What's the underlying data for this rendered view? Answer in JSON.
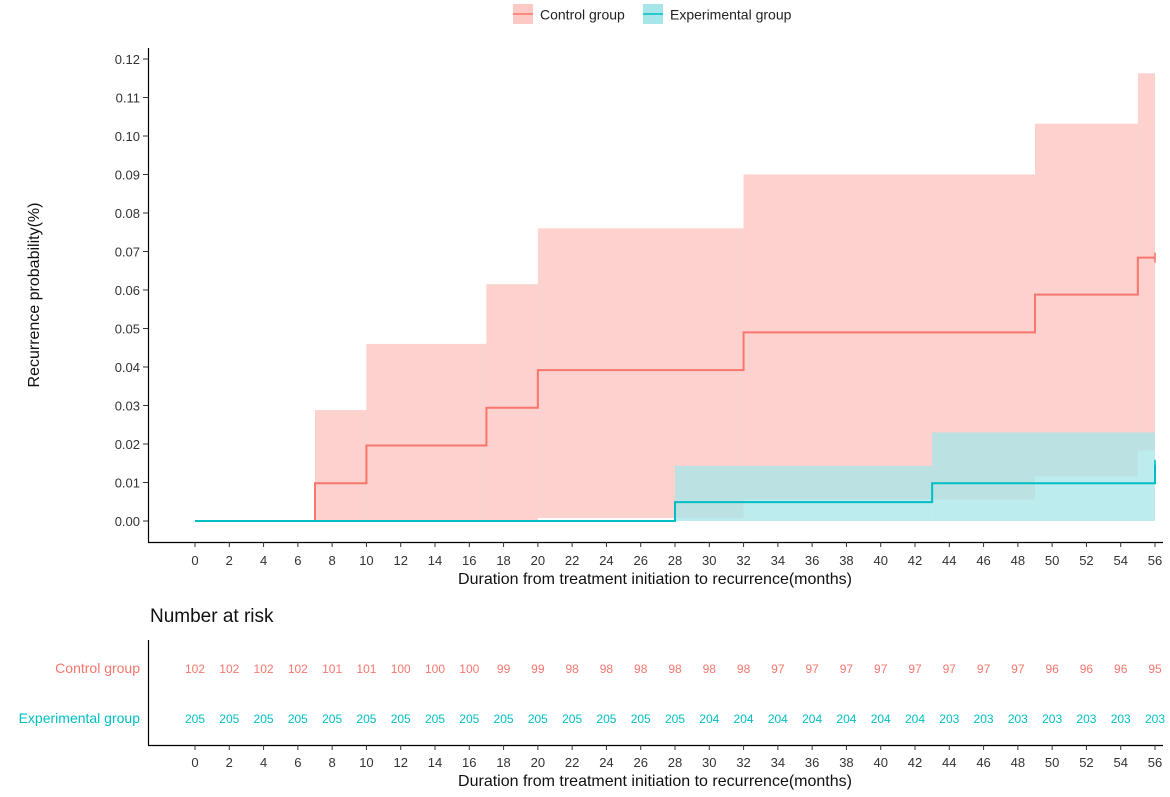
{
  "chart_data": [
    {
      "type": "step-survival",
      "legend": [
        "Control group",
        "Experimental group"
      ],
      "legend_position": "top",
      "ylabel": "Recurrence probability(%)",
      "xlabel": "Duration from treatment initiation to recurrence(months)",
      "ylim": [
        0,
        0.12
      ],
      "yticks": [
        0.0,
        0.01,
        0.02,
        0.03,
        0.04,
        0.05,
        0.06,
        0.07,
        0.08,
        0.09,
        0.1,
        0.11,
        0.12
      ],
      "ytick_labels": [
        "0.00",
        "0.01",
        "0.02",
        "0.03",
        "0.04",
        "0.05",
        "0.06",
        "0.07",
        "0.08",
        "0.09",
        "0.10",
        "0.11",
        "0.12"
      ],
      "xlim": [
        0,
        56
      ],
      "xticks": [
        0,
        2,
        4,
        6,
        8,
        10,
        12,
        14,
        16,
        18,
        20,
        22,
        24,
        26,
        28,
        30,
        32,
        34,
        36,
        38,
        40,
        42,
        44,
        46,
        48,
        50,
        52,
        54,
        56
      ],
      "xtick_labels": [
        "0",
        "2",
        "4",
        "6",
        "8",
        "10",
        "12",
        "14",
        "16",
        "18",
        "20",
        "22",
        "24",
        "26",
        "28",
        "30",
        "32",
        "34",
        "36",
        "38",
        "40",
        "42",
        "44",
        "46",
        "48",
        "50",
        "52",
        "54",
        "56"
      ],
      "series": [
        {
          "name": "Control group",
          "color": "#f8766d",
          "band_color": "#fcc9c5",
          "end": 56,
          "steps": [
            {
              "x": 0,
              "y": 0.0,
              "lo": 0.0,
              "hi": 0.0
            },
            {
              "x": 7,
              "y": 0.0098,
              "lo": 0.0,
              "hi": 0.0288
            },
            {
              "x": 10,
              "y": 0.0196,
              "lo": 0.0,
              "hi": 0.046
            },
            {
              "x": 17,
              "y": 0.0294,
              "lo": 0.0,
              "hi": 0.0615
            },
            {
              "x": 20,
              "y": 0.0392,
              "lo": 0.0008,
              "hi": 0.076
            },
            {
              "x": 32,
              "y": 0.049,
              "lo": 0.0056,
              "hi": 0.09
            },
            {
              "x": 49,
              "y": 0.0588,
              "lo": 0.0116,
              "hi": 0.1032
            },
            {
              "x": 55,
              "y": 0.0684,
              "lo": 0.0183,
              "hi": 0.1163
            }
          ]
        },
        {
          "name": "Experimental group",
          "color": "#00bfc4",
          "band_color": "#a6e6e8",
          "end": 56,
          "steps": [
            {
              "x": 0,
              "y": 0.0,
              "lo": 0.0,
              "hi": 0.0
            },
            {
              "x": 28,
              "y": 0.0049,
              "lo": 0.0,
              "hi": 0.0143
            },
            {
              "x": 43,
              "y": 0.0098,
              "lo": 0.0,
              "hi": 0.023
            },
            {
              "x": 56,
              "y": 0.0146,
              "lo": 0.0,
              "hi": 0.023
            }
          ]
        }
      ]
    },
    {
      "type": "table",
      "title": "Number at risk",
      "xlabel": "Duration from treatment initiation to recurrence(months)",
      "columns": [
        "0",
        "2",
        "4",
        "6",
        "8",
        "10",
        "12",
        "14",
        "16",
        "18",
        "20",
        "22",
        "24",
        "26",
        "28",
        "30",
        "32",
        "34",
        "36",
        "38",
        "40",
        "42",
        "44",
        "46",
        "48",
        "50",
        "52",
        "54",
        "56"
      ],
      "rows": [
        {
          "label": "Control group",
          "color": "#f8766d",
          "values": [
            "102",
            "102",
            "102",
            "102",
            "101",
            "101",
            "100",
            "100",
            "100",
            "99",
            "99",
            "98",
            "98",
            "98",
            "98",
            "98",
            "98",
            "97",
            "97",
            "97",
            "97",
            "97",
            "97",
            "97",
            "97",
            "96",
            "96",
            "96",
            "95"
          ]
        },
        {
          "label": "Experimental group",
          "color": "#00bfc4",
          "values": [
            "205",
            "205",
            "205",
            "205",
            "205",
            "205",
            "205",
            "205",
            "205",
            "205",
            "205",
            "205",
            "205",
            "205",
            "205",
            "204",
            "204",
            "204",
            "204",
            "204",
            "204",
            "204",
            "203",
            "203",
            "203",
            "203",
            "203",
            "203",
            "203"
          ]
        }
      ]
    }
  ]
}
